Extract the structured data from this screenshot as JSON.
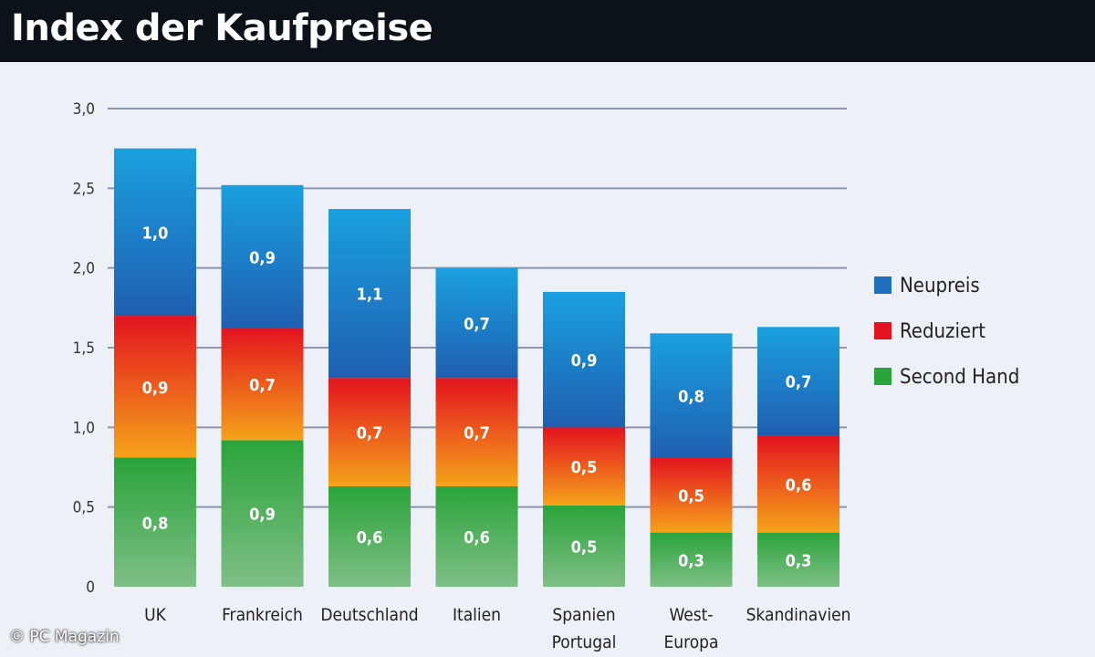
{
  "title": "Index der Kaufpreise",
  "copyright": "© PC Magazin",
  "colors": {
    "neupreis_top": "#1aa0e0",
    "neupreis_bottom": "#1f5fb0",
    "reduziert_top": "#e3131f",
    "reduziert_bottom": "#f5a31a",
    "second_top": "#2aa43a",
    "second_bottom": "#7fbf86",
    "legend_neupreis": "#1f6fc0",
    "legend_reduziert": "#e3131f",
    "legend_second": "#2aa43a",
    "grid": "#8a95a8"
  },
  "chart_data": {
    "type": "bar",
    "stacked": true,
    "title": "Index der Kaufpreise",
    "xlabel": "",
    "ylabel": "",
    "ylim": [
      0,
      3.0
    ],
    "yticks": [
      0,
      0.5,
      1.0,
      1.5,
      2.0,
      2.5,
      3.0
    ],
    "ytick_labels": [
      "0",
      "0,5",
      "1,0",
      "1,5",
      "2,0",
      "2,5",
      "3,0"
    ],
    "grid": true,
    "legend_position": "right",
    "categories": [
      [
        "UK"
      ],
      [
        "Frankreich"
      ],
      [
        "Deutschland"
      ],
      [
        "Italien"
      ],
      [
        "Spanien",
        "Portugal"
      ],
      [
        "West-",
        "Europa"
      ],
      [
        "Skandinavien"
      ]
    ],
    "series": [
      {
        "name": "Second Hand",
        "key": "second",
        "values": [
          0.8,
          0.9,
          0.6,
          0.6,
          0.5,
          0.3,
          0.3
        ],
        "labels": [
          "0,8",
          "0,9",
          "0,6",
          "0,6",
          "0,5",
          "0,3",
          "0,3"
        ],
        "bar_values": [
          0.81,
          0.92,
          0.63,
          0.63,
          0.51,
          0.34,
          0.34
        ]
      },
      {
        "name": "Reduziert",
        "key": "reduziert",
        "values": [
          0.9,
          0.7,
          0.7,
          0.7,
          0.5,
          0.5,
          0.6
        ],
        "labels": [
          "0,9",
          "0,7",
          "0,7",
          "0,7",
          "0,5",
          "0,5",
          "0,6"
        ],
        "bar_values": [
          0.89,
          0.7,
          0.68,
          0.68,
          0.49,
          0.47,
          0.61
        ]
      },
      {
        "name": "Neupreis",
        "key": "neupreis",
        "values": [
          1.0,
          0.9,
          1.1,
          0.7,
          0.9,
          0.8,
          0.7
        ],
        "labels": [
          "1,0",
          "0,9",
          "1,1",
          "0,7",
          "0,9",
          "0,8",
          "0,7"
        ],
        "bar_values": [
          1.05,
          0.9,
          1.06,
          0.69,
          0.85,
          0.78,
          0.68
        ]
      }
    ],
    "legend": [
      "Neupreis",
      "Reduziert",
      "Second Hand"
    ]
  }
}
